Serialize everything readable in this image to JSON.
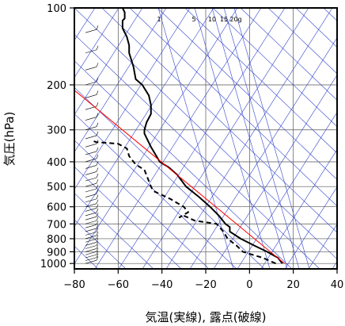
{
  "chart_data": {
    "type": "line",
    "title": "",
    "xlabel": "気温(実線), 露点(破線)",
    "ylabel": "気圧(hPa)",
    "xlim": [
      -80,
      40
    ],
    "ylim": [
      1050,
      100
    ],
    "y_scale": "log",
    "x_ticks": [
      -80,
      -60,
      -40,
      -20,
      0,
      20,
      40
    ],
    "x_tick_labels": [
      "−80",
      "−60",
      "−40",
      "−20",
      "0",
      "20",
      "40"
    ],
    "y_ticks": [
      100,
      200,
      300,
      400,
      500,
      600,
      700,
      800,
      900,
      1000
    ],
    "y_tick_labels": [
      "100",
      "200",
      "300",
      "400",
      "500",
      "600",
      "700",
      "800",
      "900",
      "1000"
    ],
    "grid": true,
    "mixing_ratio_labels": [
      "1",
      "5",
      "10",
      "15",
      "20g"
    ],
    "mixing_ratio_values": [
      1,
      5,
      10,
      15,
      20
    ],
    "background_line_color": "#3344cc",
    "reference_line_color": "#ff0000",
    "series": [
      {
        "style": "solid",
        "color": "#000000",
        "points": [
          [
            15,
            1000
          ],
          [
            13,
            950
          ],
          [
            8,
            900
          ],
          [
            2,
            850
          ],
          [
            -4,
            800
          ],
          [
            -9,
            750
          ],
          [
            -9,
            720
          ],
          [
            -11,
            700
          ],
          [
            -14,
            650
          ],
          [
            -18,
            600
          ],
          [
            -23,
            550
          ],
          [
            -29,
            500
          ],
          [
            -33,
            450
          ],
          [
            -37,
            420
          ],
          [
            -41,
            400
          ],
          [
            -45,
            350
          ],
          [
            -48,
            310
          ],
          [
            -48,
            300
          ],
          [
            -47,
            280
          ],
          [
            -45,
            260
          ],
          [
            -45,
            240
          ],
          [
            -46,
            220
          ],
          [
            -49,
            200
          ],
          [
            -52,
            190
          ],
          [
            -53,
            170
          ],
          [
            -55,
            150
          ],
          [
            -55,
            140
          ],
          [
            -56,
            130
          ],
          [
            -58,
            120
          ],
          [
            -58,
            115
          ],
          [
            -58,
            112
          ],
          [
            -57,
            110
          ],
          [
            -57,
            104
          ],
          [
            -58,
            100
          ]
        ]
      },
      {
        "style": "dashed",
        "color": "#000000",
        "points": [
          [
            12,
            1000
          ],
          [
            6,
            950
          ],
          [
            -3,
            900
          ],
          [
            -6,
            850
          ],
          [
            -10,
            800
          ],
          [
            -12,
            750
          ],
          [
            -15,
            700
          ],
          [
            -25,
            680
          ],
          [
            -30,
            650
          ],
          [
            -32,
            660
          ],
          [
            -28,
            630
          ],
          [
            -30,
            600
          ],
          [
            -33,
            580
          ],
          [
            -36,
            560
          ],
          [
            -44,
            520
          ],
          [
            -45,
            500
          ],
          [
            -48,
            430
          ],
          [
            -52,
            410
          ],
          [
            -55,
            380
          ],
          [
            -56,
            355
          ],
          [
            -60,
            340
          ],
          [
            -70,
            335
          ],
          [
            -72,
            330
          ]
        ]
      },
      {
        "style": "solid",
        "color": "#ff0000",
        "points": [
          [
            -80,
            210
          ],
          [
            16,
            1000
          ]
        ]
      }
    ]
  }
}
